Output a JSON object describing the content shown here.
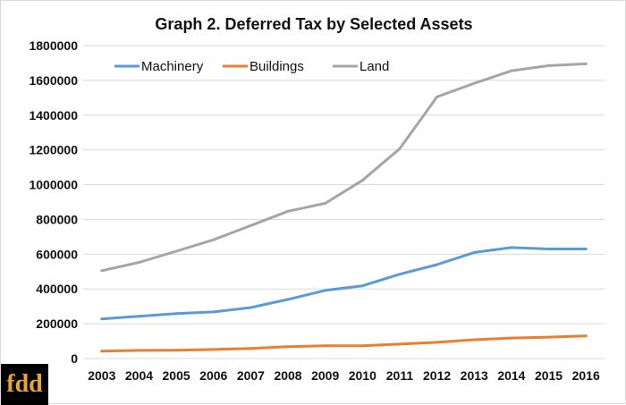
{
  "logo": {
    "text": "fdd"
  },
  "chart_data": {
    "type": "line",
    "title": "Graph 2. Deferred Tax by Selected Assets",
    "xlabel": "",
    "ylabel": "",
    "categories": [
      "2003",
      "2004",
      "2005",
      "2006",
      "2007",
      "2008",
      "2009",
      "2010",
      "2011",
      "2012",
      "2013",
      "2014",
      "2015",
      "2016"
    ],
    "ylim": [
      0,
      1800000
    ],
    "yticks": [
      "1800000",
      "1600000",
      "1400000",
      "1200000",
      "1000000",
      "800000",
      "600000",
      "400000",
      "200000",
      "0"
    ],
    "grid": true,
    "legend_position": "top-left",
    "series": [
      {
        "name": "Machinery",
        "color": "#5b9bd5",
        "values": [
          228000,
          243000,
          258000,
          268000,
          293000,
          340000,
          392000,
          418000,
          485000,
          540000,
          610000,
          638000,
          630000,
          630000
        ]
      },
      {
        "name": "Buildings",
        "color": "#ed7d31",
        "values": [
          42000,
          47000,
          48000,
          52000,
          58000,
          68000,
          73000,
          73000,
          83000,
          93000,
          108000,
          118000,
          123000,
          130000
        ]
      },
      {
        "name": "Land",
        "color": "#a5a5a5",
        "values": [
          505000,
          553000,
          617000,
          683000,
          765000,
          847000,
          893000,
          1025000,
          1207000,
          1505000,
          1583000,
          1655000,
          1685000,
          1695000
        ]
      }
    ]
  }
}
